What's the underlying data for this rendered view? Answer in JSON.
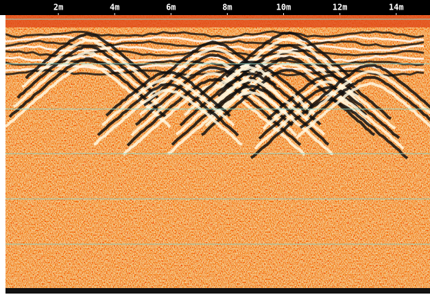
{
  "scan": {
    "xlim": [
      0,
      15.2
    ],
    "xticks": [
      {
        "value": 2,
        "label": "2m"
      },
      {
        "value": 4,
        "label": "4m"
      },
      {
        "value": 6,
        "label": "6m"
      },
      {
        "value": 8,
        "label": "8m"
      },
      {
        "value": 10,
        "label": "10m"
      },
      {
        "value": 12,
        "label": "12m"
      },
      {
        "value": 14,
        "label": "14m"
      }
    ]
  }
}
